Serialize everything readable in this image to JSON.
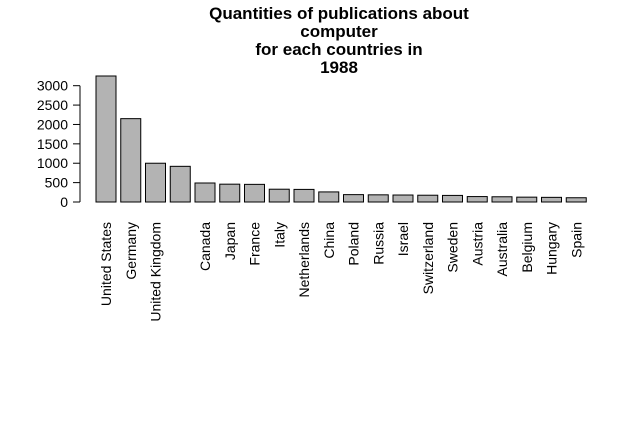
{
  "chart_data": {
    "type": "bar",
    "title_lines": [
      "Quantities of publications about",
      "computer",
      "for each countries in",
      "1988"
    ],
    "xlabel": "",
    "ylabel": "",
    "categories": [
      "United States",
      "Germany",
      "United Kingdom",
      "",
      "Canada",
      "Japan",
      "France",
      "Italy",
      "Netherlands",
      "China",
      "Poland",
      "Russia",
      "Israel",
      "Switzerland",
      "Sweden",
      "Austria",
      "Australia",
      "Belgium",
      "Hungary",
      "Spain"
    ],
    "values": [
      3250,
      2150,
      1000,
      920,
      490,
      460,
      455,
      330,
      325,
      260,
      190,
      185,
      180,
      175,
      170,
      140,
      135,
      125,
      120,
      110
    ],
    "yticks": [
      0,
      500,
      1000,
      1500,
      2000,
      2500,
      3000
    ],
    "ylim": [
      0,
      3250
    ],
    "bar_color": "#b3b3b3",
    "bar_border_color": "#000000",
    "grid": false,
    "legend": "none"
  }
}
